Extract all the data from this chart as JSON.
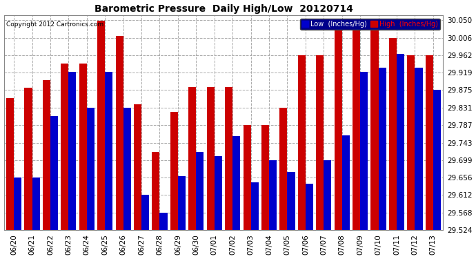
{
  "title": "Barometric Pressure  Daily High/Low  20120714",
  "copyright": "Copyright 2012 Cartronics.com",
  "legend_low": "Low  (Inches/Hg)",
  "legend_high": "High  (Inches/Hg)",
  "low_color": "#0000CC",
  "high_color": "#CC0000",
  "background_color": "#ffffff",
  "ylim_min": 29.524,
  "ylim_max": 30.062,
  "yticks": [
    29.524,
    29.568,
    29.612,
    29.656,
    29.699,
    29.743,
    29.787,
    29.831,
    29.875,
    29.919,
    29.962,
    30.006,
    30.05
  ],
  "dates": [
    "06/20",
    "06/21",
    "06/22",
    "06/23",
    "06/24",
    "06/25",
    "06/26",
    "06/27",
    "06/28",
    "06/29",
    "06/30",
    "07/01",
    "07/02",
    "07/03",
    "07/04",
    "07/05",
    "07/06",
    "07/07",
    "07/08",
    "07/09",
    "07/10",
    "07/11",
    "07/12",
    "07/13"
  ],
  "highs": [
    29.855,
    29.88,
    29.9,
    29.942,
    29.942,
    30.048,
    30.01,
    29.84,
    29.72,
    29.82,
    29.883,
    29.883,
    29.883,
    29.787,
    29.787,
    29.831,
    29.962,
    29.962,
    30.028,
    30.05,
    30.05,
    30.006,
    29.962,
    29.962
  ],
  "lows": [
    29.656,
    29.656,
    29.81,
    29.92,
    29.831,
    29.92,
    29.831,
    29.612,
    29.568,
    29.66,
    29.72,
    29.71,
    29.76,
    29.643,
    29.699,
    29.67,
    29.64,
    29.699,
    29.762,
    29.92,
    29.93,
    29.965,
    29.93,
    29.875
  ]
}
